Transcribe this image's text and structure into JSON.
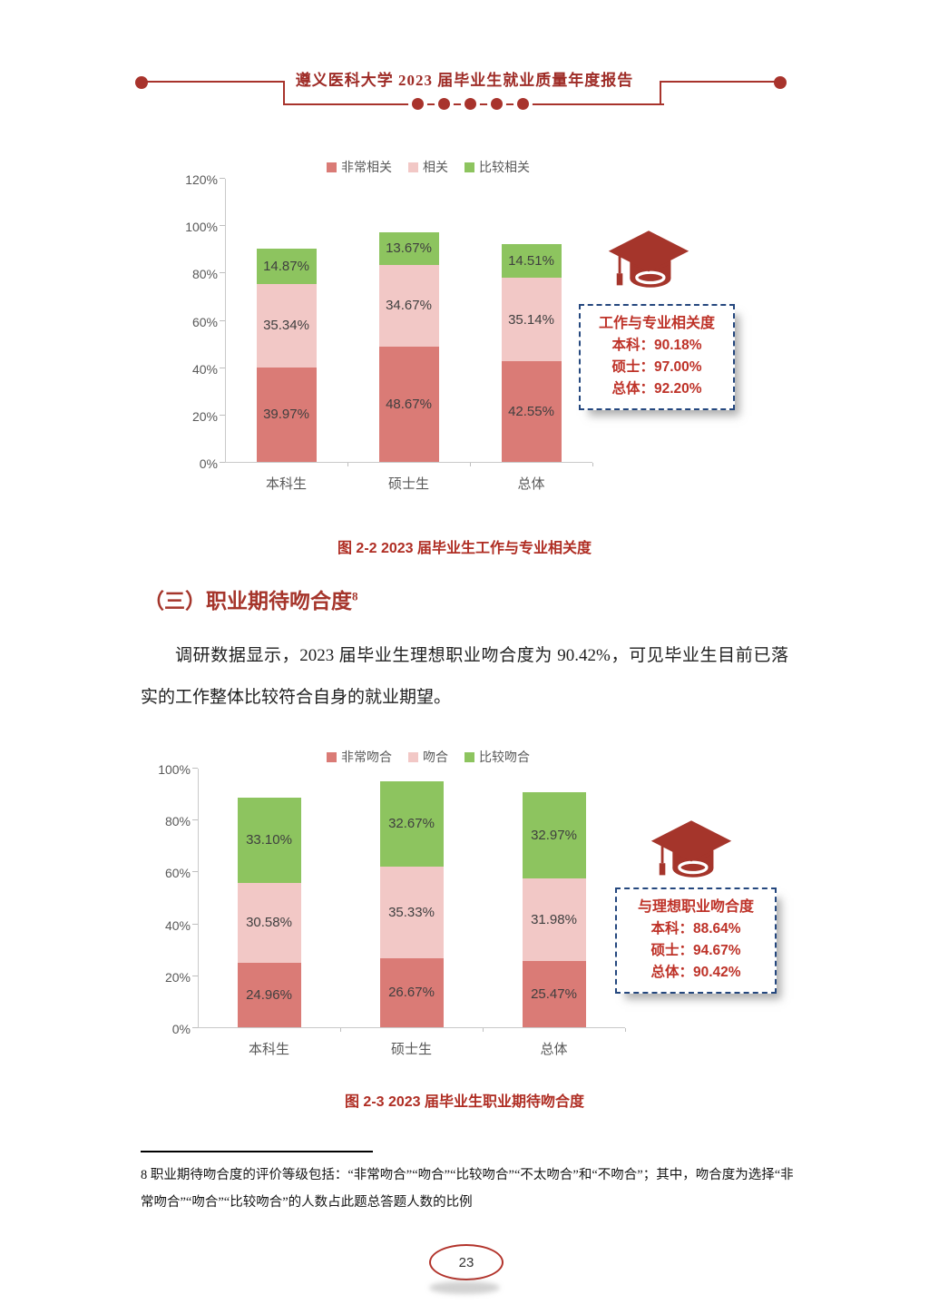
{
  "header": {
    "title": "遵义医科大学 2023 届毕业生就业质量年度报告"
  },
  "chart_data": [
    {
      "type": "bar",
      "stacked": true,
      "categories": [
        "本科生",
        "硕士生",
        "总体"
      ],
      "series": [
        {
          "name": "非常相关",
          "color": "#DA7B76",
          "values": [
            39.97,
            48.67,
            42.55
          ]
        },
        {
          "name": "相关",
          "color": "#F2C8C6",
          "values": [
            35.34,
            34.67,
            35.14
          ]
        },
        {
          "name": "比较相关",
          "color": "#8DC45F",
          "values": [
            14.87,
            13.67,
            14.51
          ]
        }
      ],
      "ylim": [
        0,
        120
      ],
      "y_ticks": [
        "0%",
        "20%",
        "40%",
        "60%",
        "80%",
        "100%",
        "120%"
      ],
      "legend_position": "top",
      "grid": false,
      "callout": {
        "title": "工作与专业相关度",
        "lines": [
          "本科：90.18%",
          "硕士：97.00%",
          "总体：92.20%"
        ]
      },
      "caption": "图 2-2 2023 届毕业生工作与专业相关度"
    },
    {
      "type": "bar",
      "stacked": true,
      "categories": [
        "本科生",
        "硕士生",
        "总体"
      ],
      "series": [
        {
          "name": "非常吻合",
          "color": "#DA7B76",
          "values": [
            24.96,
            26.67,
            25.47
          ]
        },
        {
          "name": "吻合",
          "color": "#F2C8C6",
          "values": [
            30.58,
            35.33,
            31.98
          ]
        },
        {
          "name": "比较吻合",
          "color": "#8DC45F",
          "values": [
            33.1,
            32.67,
            32.97
          ]
        }
      ],
      "ylim": [
        0,
        100
      ],
      "y_ticks": [
        "0%",
        "20%",
        "40%",
        "60%",
        "80%",
        "100%"
      ],
      "legend_position": "top",
      "grid": false,
      "callout": {
        "title": "与理想职业吻合度",
        "lines": [
          "本科：88.64%",
          "硕士：94.67%",
          "总体：90.42%"
        ]
      },
      "caption": "图 2-3 2023 届毕业生职业期待吻合度"
    }
  ],
  "section": {
    "heading": "（三）职业期待吻合度",
    "heading_sup": "8",
    "paragraph": "调研数据显示，2023 届毕业生理想职业吻合度为 90.42%，可见毕业生目前已落实的工作整体比较符合自身的就业期望。"
  },
  "footnote": {
    "text": "8 职业期待吻合度的评价等级包括：“非常吻合”“吻合”“比较吻合”“不太吻合”和“不吻合”；其中，吻合度为选择“非常吻合”“吻合”“比较吻合”的人数占此题总答题人数的比例"
  },
  "page_number": "23",
  "colors": {
    "brand_red": "#A8332C",
    "caption_red": "#AF2D23",
    "callout_text_red": "#BE3228",
    "callout_border_navy": "#24477E",
    "axis_text_gray": "#595959",
    "data_label_gray": "#3F3F3F"
  }
}
